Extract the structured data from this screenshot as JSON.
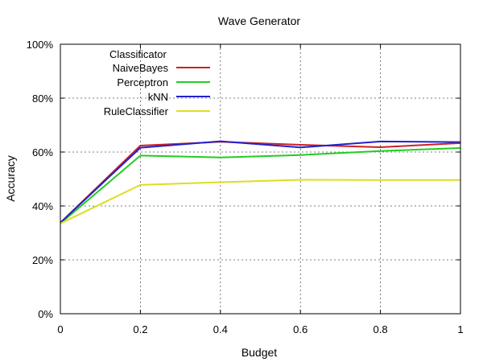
{
  "chart_data": {
    "type": "line",
    "title": "Wave Generator",
    "xlabel": "Budget",
    "ylabel": "Accuracy",
    "xlim": [
      0,
      1
    ],
    "ylim": [
      0,
      100
    ],
    "grid": true,
    "x_ticks": [
      "0",
      "0.2",
      "0.4",
      "0.6",
      "0.8",
      "1"
    ],
    "y_ticks": [
      "0%",
      "20%",
      "40%",
      "60%",
      "80%",
      "100%"
    ],
    "legend": {
      "title": "Classificator",
      "placement": "top-left"
    },
    "series": [
      {
        "name": "NaiveBayes",
        "color": "#cc2222",
        "x": [
          0,
          0.2,
          0.4,
          0.6,
          0.8,
          1
        ],
        "y": [
          33.8,
          62.4,
          63.8,
          62.7,
          61.8,
          63.3
        ]
      },
      {
        "name": "Perceptron",
        "color": "#22cc22",
        "x": [
          0,
          0.2,
          0.4,
          0.6,
          0.8,
          1
        ],
        "y": [
          33.5,
          58.7,
          58.0,
          58.9,
          60.4,
          61.5
        ]
      },
      {
        "name": "kNN",
        "color": "#2222cc",
        "x": [
          0,
          0.2,
          0.4,
          0.6,
          0.8,
          1
        ],
        "y": [
          33.8,
          61.6,
          64.0,
          61.7,
          63.9,
          63.7
        ]
      },
      {
        "name": "RuleClassifier",
        "color": "#dddd22",
        "x": [
          0,
          0.2,
          0.4,
          0.6,
          0.8,
          1
        ],
        "y": [
          33.5,
          47.8,
          48.8,
          49.7,
          49.6,
          49.6
        ]
      }
    ]
  }
}
